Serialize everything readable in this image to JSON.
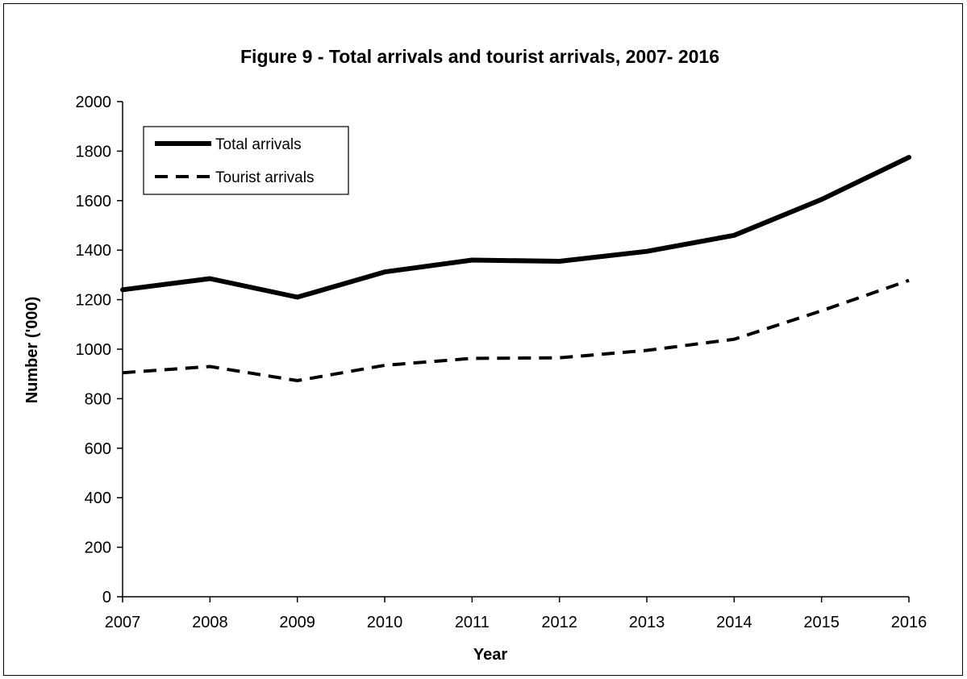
{
  "chart_data": {
    "type": "line",
    "title": "Figure 9 - Total arrivals and tourist arrivals, 2007- 2016",
    "xlabel": "Year",
    "ylabel": "Number ('000)",
    "categories": [
      "2007",
      "2008",
      "2009",
      "2010",
      "2011",
      "2012",
      "2013",
      "2014",
      "2015",
      "2016"
    ],
    "yticks": [
      "0",
      "200",
      "400",
      "600",
      "800",
      "1000",
      "1200",
      "1400",
      "1600",
      "1800",
      "2000"
    ],
    "ylim": [
      0,
      2000
    ],
    "grid": false,
    "legend_position": "top-left",
    "series": [
      {
        "name": "Total arrivals",
        "style": "solid",
        "color": "#000000",
        "values": [
          1240,
          1285,
          1210,
          1312,
          1360,
          1355,
          1395,
          1460,
          1605,
          1775
        ]
      },
      {
        "name": "Tourist arrivals",
        "style": "dashed",
        "color": "#000000",
        "values": [
          905,
          930,
          873,
          935,
          963,
          965,
          995,
          1040,
          1155,
          1278
        ]
      }
    ]
  }
}
